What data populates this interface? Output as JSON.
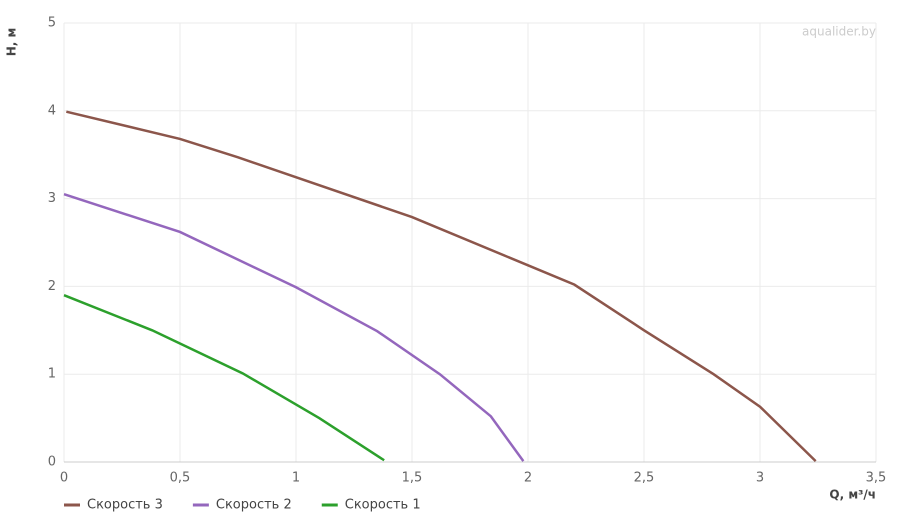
{
  "chart_data": {
    "type": "line",
    "watermark": "aqualider.by",
    "x_label": "Q, м³/ч",
    "y_label": "H, м",
    "xlim": [
      0,
      3.5
    ],
    "xticks": [
      0,
      {
        "value": 0.5,
        "label": "0,5"
      },
      1,
      {
        "value": 1.5,
        "label": "1,5"
      },
      2,
      {
        "value": 2.5,
        "label": "2,5"
      },
      3,
      {
        "value": 3.5,
        "label": "3,5"
      }
    ],
    "ylim": [
      0,
      5
    ],
    "yticks": [
      0,
      1,
      2,
      3,
      4,
      5
    ],
    "grid": true,
    "series": [
      {
        "name": "Скорость 3",
        "color": "#8c564b",
        "x": [
          0.01,
          0.5,
          0.75,
          1.5,
          2,
          2.2,
          2.5,
          2.8,
          3,
          3.24
        ],
        "values": [
          3.99,
          3.68,
          3.47,
          2.79,
          2.24,
          2.02,
          1.5,
          1.0,
          0.63,
          0.01
        ]
      },
      {
        "name": "Скорость 2",
        "color": "#9467bd",
        "x": [
          0,
          0.5,
          1,
          1.35,
          1.62,
          1.84,
          1.98
        ],
        "values": [
          3.05,
          2.62,
          1.99,
          1.49,
          1.0,
          0.52,
          0.01
        ]
      },
      {
        "name": "Скорость 1",
        "color": "#2ca02c",
        "x": [
          0,
          0.38,
          0.77,
          1.1,
          1.38
        ],
        "values": [
          1.9,
          1.5,
          1.01,
          0.5,
          0.02
        ]
      }
    ]
  }
}
